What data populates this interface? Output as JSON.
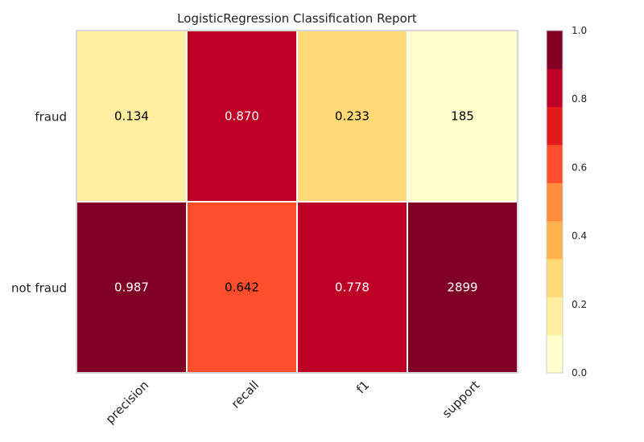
{
  "chart_data": {
    "type": "heatmap",
    "title": "LogisticRegression Classification Report",
    "rows": [
      "fraud",
      "not fraud"
    ],
    "columns": [
      "precision",
      "recall",
      "f1",
      "support"
    ],
    "cells": [
      [
        {
          "value": 0.134,
          "label": "0.134"
        },
        {
          "value": 0.87,
          "label": "0.870"
        },
        {
          "value": 0.233,
          "label": "0.233"
        },
        {
          "value": 0.064,
          "label": "185"
        }
      ],
      [
        {
          "value": 0.987,
          "label": "0.987"
        },
        {
          "value": 0.642,
          "label": "0.642"
        },
        {
          "value": 0.778,
          "label": "0.778"
        },
        {
          "value": 1.0,
          "label": "2899"
        }
      ]
    ],
    "colorbar": {
      "range": [
        0.0,
        1.0
      ],
      "ticks": [
        "0.0",
        "0.2",
        "0.4",
        "0.6",
        "0.8",
        "1.0"
      ],
      "colors": [
        "#ffffcc",
        "#ffeda0",
        "#fed976",
        "#feb24c",
        "#fd8d3c",
        "#fc4e2a",
        "#e31a1c",
        "#bd0026",
        "#800026"
      ]
    }
  }
}
